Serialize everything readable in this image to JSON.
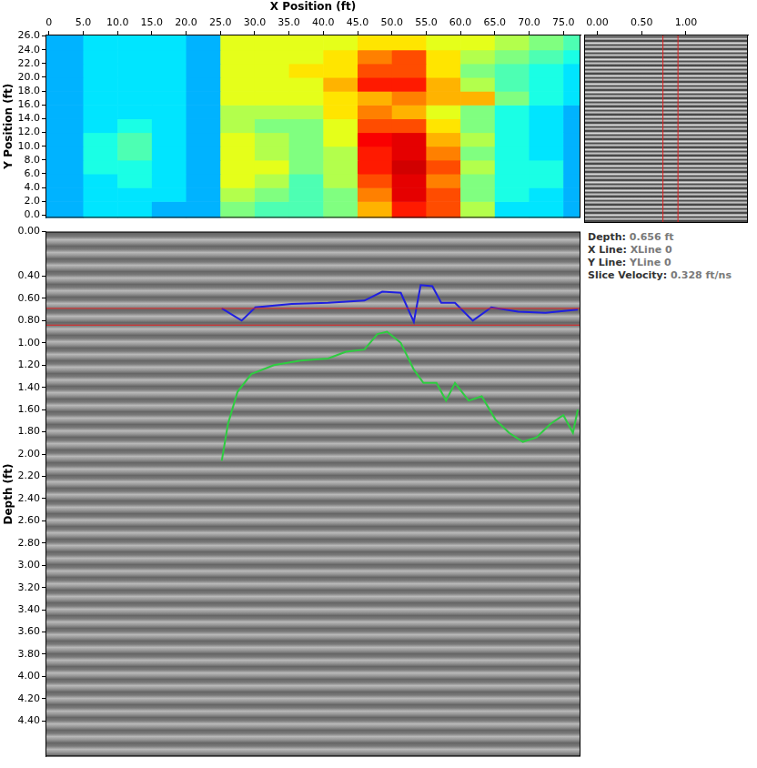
{
  "chart_data": [
    {
      "type": "heatmap",
      "x_label": "X Position (ft)",
      "y_label": "Y Position (ft)",
      "xlim": [
        -0.5,
        77.5
      ],
      "ylim": [
        -0.4,
        26.2
      ],
      "xticks": [
        0,
        {
          "value": 5,
          "label": "5.0"
        },
        {
          "value": 10,
          "label": "10.0"
        },
        {
          "value": 15,
          "label": "15.0"
        },
        {
          "value": 20,
          "label": "20.0"
        },
        {
          "value": 25,
          "label": "25.0"
        },
        {
          "value": 30,
          "label": "30.0"
        },
        {
          "value": 35,
          "label": "35.0"
        },
        {
          "value": 40,
          "label": "40.0"
        },
        {
          "value": 45,
          "label": "45.0"
        },
        {
          "value": 50,
          "label": "50.0"
        },
        {
          "value": 55,
          "label": "55.0"
        },
        {
          "value": 60,
          "label": "60.0"
        },
        {
          "value": 65,
          "label": "65.0"
        },
        {
          "value": 70,
          "label": "70.0"
        },
        {
          "value": 75,
          "label": "75.0"
        }
      ],
      "yticks": [
        {
          "value": 0,
          "label": "0.0"
        },
        {
          "value": 2,
          "label": "2.0"
        },
        {
          "value": 4,
          "label": "4.0"
        },
        {
          "value": 6,
          "label": "6.0"
        },
        {
          "value": 8,
          "label": "8.0"
        },
        {
          "value": 10,
          "label": "10.0"
        },
        {
          "value": 12,
          "label": "12.0"
        },
        {
          "value": 14,
          "label": "14.0"
        },
        {
          "value": 16,
          "label": "16.0"
        },
        {
          "value": 18,
          "label": "18.0"
        },
        {
          "value": 20,
          "label": "20.0"
        },
        {
          "value": 22,
          "label": "22.0"
        },
        {
          "value": 24,
          "label": "24.0"
        },
        {
          "value": 26,
          "label": "26.0"
        }
      ],
      "x_edges": [
        -0.5,
        5,
        10,
        15,
        20,
        25,
        30,
        35,
        40,
        45,
        50,
        55,
        60,
        65,
        70,
        75,
        77.5
      ],
      "y_edges": [
        -0.4,
        2,
        4,
        6,
        8,
        10,
        12,
        14,
        16,
        18,
        20,
        22,
        24,
        26.2
      ],
      "z": [
        [
          0.3,
          0.35,
          0.35,
          0.3,
          0.3,
          0.5,
          0.45,
          0.45,
          0.5,
          0.7,
          0.85,
          0.8,
          0.55,
          0.35,
          0.35,
          0.3
        ],
        [
          0.3,
          0.35,
          0.35,
          0.35,
          0.3,
          0.55,
          0.5,
          0.45,
          0.5,
          0.75,
          0.9,
          0.8,
          0.5,
          0.4,
          0.35,
          0.3
        ],
        [
          0.3,
          0.35,
          0.4,
          0.35,
          0.3,
          0.6,
          0.55,
          0.45,
          0.55,
          0.8,
          0.9,
          0.75,
          0.5,
          0.4,
          0.4,
          0.3
        ],
        [
          0.3,
          0.4,
          0.4,
          0.35,
          0.3,
          0.6,
          0.6,
          0.5,
          0.55,
          0.85,
          0.92,
          0.8,
          0.55,
          0.4,
          0.4,
          0.3
        ],
        [
          0.3,
          0.4,
          0.45,
          0.35,
          0.3,
          0.6,
          0.55,
          0.5,
          0.55,
          0.85,
          0.9,
          0.75,
          0.5,
          0.4,
          0.35,
          0.3
        ],
        [
          0.3,
          0.4,
          0.45,
          0.35,
          0.3,
          0.6,
          0.55,
          0.5,
          0.6,
          0.88,
          0.9,
          0.7,
          0.55,
          0.4,
          0.35,
          0.3
        ],
        [
          0.3,
          0.35,
          0.4,
          0.35,
          0.3,
          0.55,
          0.5,
          0.5,
          0.6,
          0.8,
          0.8,
          0.65,
          0.5,
          0.4,
          0.35,
          0.3
        ],
        [
          0.3,
          0.35,
          0.35,
          0.35,
          0.3,
          0.55,
          0.55,
          0.55,
          0.65,
          0.75,
          0.7,
          0.6,
          0.5,
          0.4,
          0.35,
          0.3
        ],
        [
          0.3,
          0.35,
          0.35,
          0.35,
          0.3,
          0.6,
          0.6,
          0.6,
          0.65,
          0.7,
          0.75,
          0.7,
          0.7,
          0.5,
          0.4,
          0.35
        ],
        [
          0.3,
          0.35,
          0.35,
          0.35,
          0.3,
          0.6,
          0.6,
          0.6,
          0.7,
          0.85,
          0.85,
          0.7,
          0.55,
          0.45,
          0.4,
          0.35
        ],
        [
          0.3,
          0.35,
          0.35,
          0.35,
          0.3,
          0.6,
          0.6,
          0.65,
          0.65,
          0.8,
          0.8,
          0.65,
          0.5,
          0.45,
          0.4,
          0.35
        ],
        [
          0.3,
          0.35,
          0.35,
          0.35,
          0.3,
          0.6,
          0.6,
          0.6,
          0.65,
          0.75,
          0.8,
          0.65,
          0.55,
          0.5,
          0.45,
          0.4
        ],
        [
          0.3,
          0.35,
          0.35,
          0.35,
          0.3,
          0.6,
          0.6,
          0.6,
          0.6,
          0.65,
          0.65,
          0.6,
          0.6,
          0.55,
          0.5,
          0.45
        ]
      ]
    },
    {
      "type": "line",
      "y_label": "Depth (ft)",
      "xlim": [
        -0.5,
        77.5
      ],
      "ylim": [
        0,
        4.72
      ],
      "tick_labels": "y",
      "yticks": [
        {
          "value": 0,
          "label": "0.00"
        },
        {
          "value": 0.4,
          "label": "0.40"
        },
        {
          "value": 0.6,
          "label": "0.60"
        },
        {
          "value": 0.8,
          "label": "0.80"
        },
        {
          "value": 1,
          "label": "1.00"
        },
        {
          "value": 1.2,
          "label": "1.20"
        },
        {
          "value": 1.4,
          "label": "1.40"
        },
        {
          "value": 1.6,
          "label": "1.60"
        },
        {
          "value": 1.8,
          "label": "1.80"
        },
        {
          "value": 2,
          "label": "2.00"
        },
        {
          "value": 2.2,
          "label": "2.20"
        },
        {
          "value": 2.4,
          "label": "2.40"
        },
        {
          "value": 2.6,
          "label": "2.60"
        },
        {
          "value": 2.8,
          "label": "2.80"
        },
        {
          "value": 3,
          "label": "3.00"
        },
        {
          "value": 3.2,
          "label": "3.20"
        },
        {
          "value": 3.4,
          "label": "3.40"
        },
        {
          "value": 3.6,
          "label": "3.60"
        },
        {
          "value": 3.8,
          "label": "3.80"
        },
        {
          "value": 4,
          "label": "4.00"
        },
        {
          "value": 4.2,
          "label": "4.20"
        },
        {
          "value": 4.4,
          "label": "4.40"
        }
      ],
      "series": [
        {
          "type": "hline",
          "color": "#e02020",
          "values": [
            0.69,
            0.84
          ]
        },
        {
          "type": "line",
          "color": "#1f1fe0",
          "x": [
            25.2,
            28.1,
            30.1,
            35.4,
            40.7,
            46.0,
            48.6,
            51.3,
            53.2,
            54.2,
            55.9,
            57.2,
            59.2,
            61.8,
            64.5,
            68.4,
            72.4,
            77.1
          ],
          "values": [
            0.69,
            0.8,
            0.68,
            0.65,
            0.64,
            0.62,
            0.54,
            0.55,
            0.81,
            0.48,
            0.49,
            0.64,
            0.64,
            0.8,
            0.68,
            0.72,
            0.73,
            0.7
          ]
        },
        {
          "type": "line",
          "color": "#2ecc40",
          "x": [
            25.2,
            26.1,
            27.5,
            29.5,
            32.8,
            36.7,
            40.7,
            43.3,
            46.0,
            47.9,
            49.3,
            51.3,
            53.2,
            54.6,
            56.5,
            57.9,
            59.2,
            61.2,
            63.1,
            65.1,
            67.1,
            69.1,
            71.1,
            73.1,
            75.0,
            76.4,
            77.1
          ],
          "values": [
            2.06,
            1.73,
            1.44,
            1.28,
            1.2,
            1.16,
            1.14,
            1.08,
            1.06,
            0.92,
            0.9,
            1.0,
            1.24,
            1.36,
            1.36,
            1.52,
            1.36,
            1.52,
            1.48,
            1.69,
            1.81,
            1.89,
            1.85,
            1.73,
            1.65,
            1.81,
            1.6
          ]
        }
      ]
    },
    {
      "type": "trace",
      "xlim": [
        -0.15,
        1.7
      ],
      "tick_labels": "x",
      "xticks": [
        {
          "value": 0,
          "label": "0.00"
        },
        {
          "value": 0.5,
          "label": "0.50"
        },
        {
          "value": 1,
          "label": "1.00"
        }
      ],
      "series": [
        {
          "type": "vline",
          "color": "#e02020",
          "values": [
            0.74,
            0.91
          ]
        }
      ]
    }
  ],
  "info": [
    {
      "label": "Depth:",
      "value": "0.656 ft"
    },
    {
      "label": "X Line:",
      "value": "XLine 0"
    },
    {
      "label": "Y Line:",
      "value": "YLine 0"
    },
    {
      "label": "Slice Velocity:",
      "value": "0.328 ft/ns"
    }
  ]
}
